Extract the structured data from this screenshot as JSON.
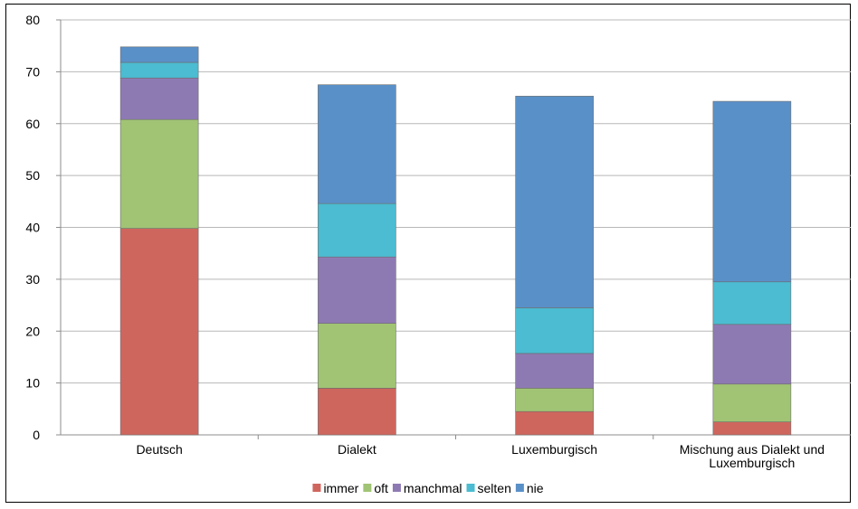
{
  "chart_data": {
    "type": "bar",
    "stacked": true,
    "categories": [
      [
        "Deutsch"
      ],
      [
        "Dialekt"
      ],
      [
        "Luxemburgisch"
      ],
      [
        "Mischung aus Dialekt und",
        "Luxemburgisch"
      ]
    ],
    "series": [
      {
        "name": "immer",
        "color": "#cf665d",
        "values": [
          39.8,
          9.0,
          4.5,
          2.5
        ]
      },
      {
        "name": "oft",
        "color": "#a0c474",
        "values": [
          21.0,
          12.5,
          4.5,
          7.3
        ]
      },
      {
        "name": "manchmal",
        "color": "#8e7ab3",
        "values": [
          8.0,
          12.8,
          6.7,
          11.5
        ]
      },
      {
        "name": "selten",
        "color": "#4bbcd1",
        "values": [
          3.0,
          10.3,
          8.8,
          8.2
        ]
      },
      {
        "name": "nie",
        "color": "#5a90c8",
        "values": [
          3.0,
          22.9,
          40.8,
          34.8
        ]
      }
    ],
    "ylim": [
      0,
      80
    ],
    "yticks": [
      0,
      10,
      20,
      30,
      40,
      50,
      60,
      70,
      80
    ],
    "grid": true,
    "legend_position": "bottom",
    "title": "",
    "xlabel": "",
    "ylabel": ""
  }
}
